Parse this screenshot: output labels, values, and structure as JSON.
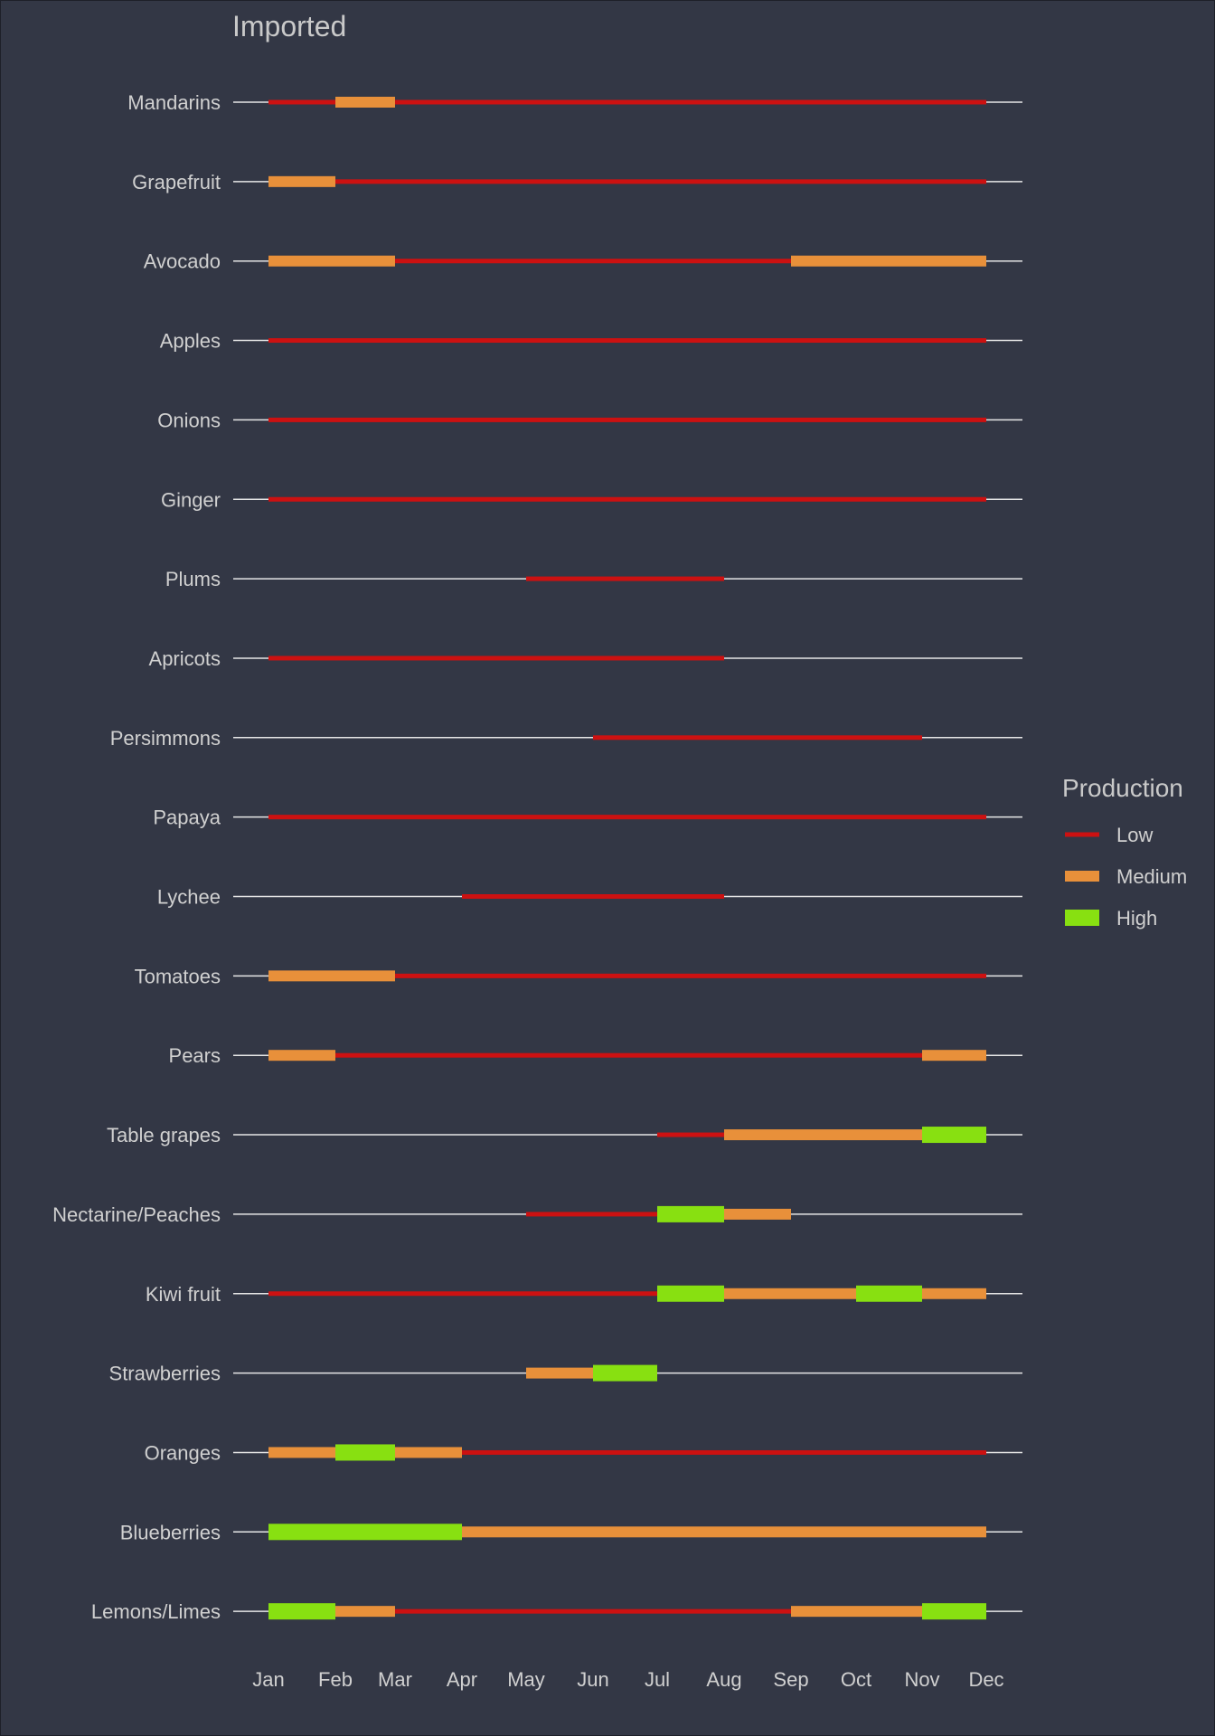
{
  "chart_data": {
    "type": "bar",
    "title": "Imported",
    "months": [
      "Jan",
      "Feb",
      "Mar",
      "Apr",
      "May",
      "Jun",
      "Jul",
      "Aug",
      "Sep",
      "Oct",
      "Nov",
      "Dec"
    ],
    "legend": {
      "title": "Production",
      "placement": "right",
      "levels": [
        {
          "label": "Low",
          "color": "#cc1111"
        },
        {
          "label": "Medium",
          "color": "#e8903a"
        },
        {
          "label": "High",
          "color": "#88e011"
        }
      ]
    },
    "rows": [
      {
        "name": "Mandarins",
        "segments": [
          {
            "start": "Jan",
            "end": "Feb",
            "level": "Low"
          },
          {
            "start": "Feb",
            "end": "Mar",
            "level": "Medium"
          },
          {
            "start": "Mar",
            "end": "Dec",
            "level": "Low"
          }
        ]
      },
      {
        "name": "Grapefruit",
        "segments": [
          {
            "start": "Jan",
            "end": "Feb",
            "level": "Medium"
          },
          {
            "start": "Feb",
            "end": "Dec",
            "level": "Low"
          }
        ]
      },
      {
        "name": "Avocado",
        "segments": [
          {
            "start": "Jan",
            "end": "Mar",
            "level": "Medium"
          },
          {
            "start": "Mar",
            "end": "Sep",
            "level": "Low"
          },
          {
            "start": "Sep",
            "end": "Dec",
            "level": "Medium"
          }
        ]
      },
      {
        "name": "Apples",
        "segments": [
          {
            "start": "Jan",
            "end": "Dec",
            "level": "Low"
          }
        ]
      },
      {
        "name": "Onions",
        "segments": [
          {
            "start": "Jan",
            "end": "Dec",
            "level": "Low"
          }
        ]
      },
      {
        "name": "Ginger",
        "segments": [
          {
            "start": "Jan",
            "end": "Dec",
            "level": "Low"
          }
        ]
      },
      {
        "name": "Plums",
        "segments": [
          {
            "start": "May",
            "end": "Aug",
            "level": "Low"
          }
        ]
      },
      {
        "name": "Apricots",
        "segments": [
          {
            "start": "Jan",
            "end": "Aug",
            "level": "Low"
          }
        ]
      },
      {
        "name": "Persimmons",
        "segments": [
          {
            "start": "Jun",
            "end": "Nov",
            "level": "Low"
          }
        ]
      },
      {
        "name": "Papaya",
        "segments": [
          {
            "start": "Jan",
            "end": "Dec",
            "level": "Low"
          }
        ]
      },
      {
        "name": "Lychee",
        "segments": [
          {
            "start": "Apr",
            "end": "Aug",
            "level": "Low"
          }
        ]
      },
      {
        "name": "Tomatoes",
        "segments": [
          {
            "start": "Jan",
            "end": "Mar",
            "level": "Medium"
          },
          {
            "start": "Mar",
            "end": "Dec",
            "level": "Low"
          }
        ]
      },
      {
        "name": "Pears",
        "segments": [
          {
            "start": "Jan",
            "end": "Feb",
            "level": "Medium"
          },
          {
            "start": "Feb",
            "end": "Nov",
            "level": "Low"
          },
          {
            "start": "Nov",
            "end": "Dec",
            "level": "Medium"
          }
        ]
      },
      {
        "name": "Table grapes",
        "segments": [
          {
            "start": "Jul",
            "end": "Aug",
            "level": "Low"
          },
          {
            "start": "Aug",
            "end": "Nov",
            "level": "Medium"
          },
          {
            "start": "Nov",
            "end": "Dec",
            "level": "High"
          }
        ]
      },
      {
        "name": "Nectarine/Peaches",
        "segments": [
          {
            "start": "May",
            "end": "Jul",
            "level": "Low"
          },
          {
            "start": "Jul",
            "end": "Aug",
            "level": "High"
          },
          {
            "start": "Aug",
            "end": "Sep",
            "level": "Medium"
          }
        ]
      },
      {
        "name": "Kiwi fruit",
        "segments": [
          {
            "start": "Jan",
            "end": "Jul",
            "level": "Low"
          },
          {
            "start": "Jul",
            "end": "Aug",
            "level": "High"
          },
          {
            "start": "Aug",
            "end": "Oct",
            "level": "Medium"
          },
          {
            "start": "Oct",
            "end": "Nov",
            "level": "High"
          },
          {
            "start": "Nov",
            "end": "Dec",
            "level": "Medium"
          }
        ]
      },
      {
        "name": "Strawberries",
        "segments": [
          {
            "start": "May",
            "end": "Jun",
            "level": "Medium"
          },
          {
            "start": "Jun",
            "end": "Jul",
            "level": "High"
          }
        ]
      },
      {
        "name": "Oranges",
        "segments": [
          {
            "start": "Jan",
            "end": "Feb",
            "level": "Medium"
          },
          {
            "start": "Feb",
            "end": "Mar",
            "level": "High"
          },
          {
            "start": "Mar",
            "end": "Apr",
            "level": "Medium"
          },
          {
            "start": "Apr",
            "end": "Dec",
            "level": "Low"
          }
        ]
      },
      {
        "name": "Blueberries",
        "segments": [
          {
            "start": "Jan",
            "end": "Apr",
            "level": "High"
          },
          {
            "start": "Apr",
            "end": "Dec",
            "level": "Medium"
          }
        ]
      },
      {
        "name": "Lemons/Limes",
        "segments": [
          {
            "start": "Jan",
            "end": "Feb",
            "level": "High"
          },
          {
            "start": "Feb",
            "end": "Mar",
            "level": "Medium"
          },
          {
            "start": "Mar",
            "end": "Sep",
            "level": "Low"
          },
          {
            "start": "Sep",
            "end": "Nov",
            "level": "Medium"
          },
          {
            "start": "Nov",
            "end": "Dec",
            "level": "High"
          }
        ]
      }
    ],
    "grid": false
  }
}
